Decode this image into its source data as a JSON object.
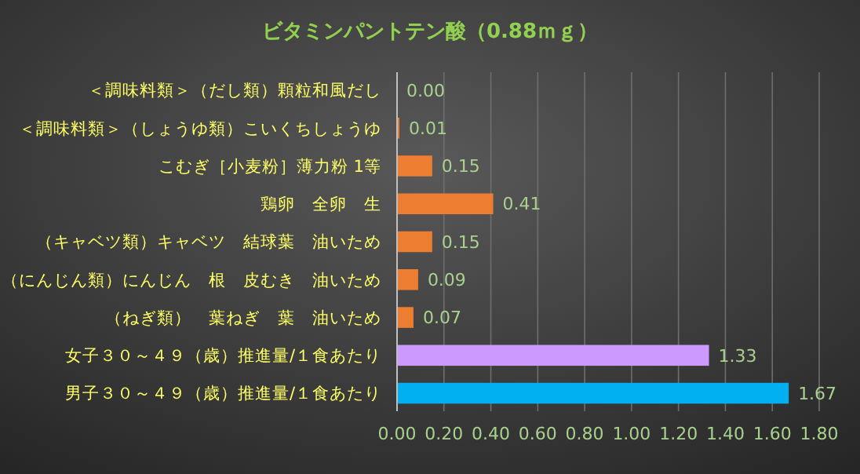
{
  "chart_data": {
    "type": "bar",
    "orientation": "horizontal",
    "title": "ビタミンパントテン酸（0.88ｍｇ）",
    "categories": [
      "＜調味料類＞（だし類）顆粒和風だし",
      "＜調味料類＞（しょうゆ類）こいくちしょうゆ",
      "こむぎ［小麦粉］薄力粉 1等",
      "鶏卵　全卵　生",
      "（キャベツ類）キャベツ　結球葉　油いため",
      "（にんじん類）にんじん　根　皮むき　油いため",
      "（ねぎ類）　葉ねぎ　葉　油いため",
      "女子３０～４９（歳）推進量/１食あたり",
      "男子３０～４９（歳）推進量/１食あたり"
    ],
    "values": [
      0.0,
      0.01,
      0.15,
      0.41,
      0.15,
      0.09,
      0.07,
      1.33,
      1.67
    ],
    "colors": [
      "#ed7d31",
      "#ed7d31",
      "#ed7d31",
      "#ed7d31",
      "#ed7d31",
      "#ed7d31",
      "#ed7d31",
      "#cc99ff",
      "#00b0f0"
    ],
    "xlim": [
      0,
      1.8
    ],
    "xticks": [
      {
        "value": 0,
        "label": "0.00"
      },
      {
        "value": 0.2,
        "label": "0.20"
      },
      {
        "value": 0.4,
        "label": "0.40"
      },
      {
        "value": 0.6,
        "label": "0.60"
      },
      {
        "value": 0.8,
        "label": "0.80"
      },
      {
        "value": 1,
        "label": "1.00"
      },
      {
        "value": 1.2,
        "label": "1.20"
      },
      {
        "value": 1.4,
        "label": "1.40"
      },
      {
        "value": 1.6,
        "label": "1.60"
      },
      {
        "value": 1.8,
        "label": "1.80"
      }
    ],
    "grid": "x",
    "value_labels": [
      "0.00",
      "0.01",
      "0.15",
      "0.41",
      "0.15",
      "0.09",
      "0.07",
      "1.33",
      "1.67"
    ]
  }
}
